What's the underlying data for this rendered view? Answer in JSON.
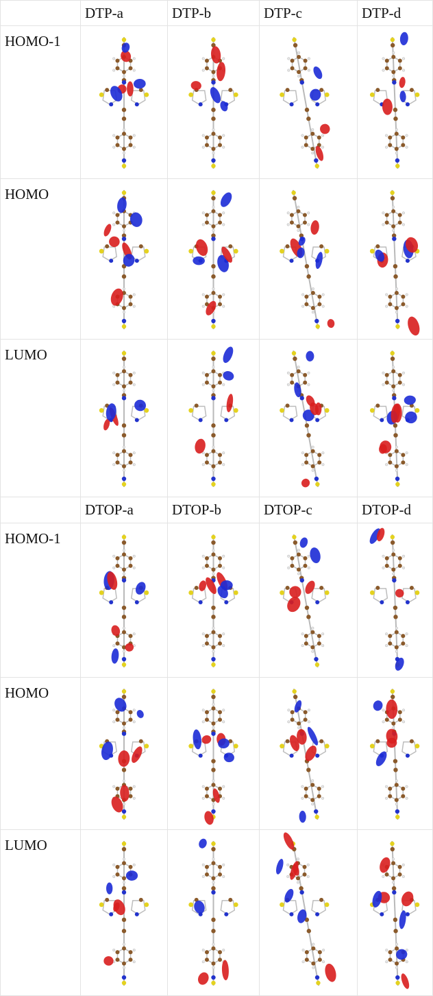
{
  "tables": [
    {
      "columns": [
        "",
        "DTP-a",
        "DTP-b",
        "DTP-c",
        "DTP-d"
      ],
      "rows": [
        {
          "label": "HOMO-1",
          "images": [
            "dtp-a-homo-1",
            "dtp-b-homo-1",
            "dtp-c-homo-1",
            "dtp-d-homo-1"
          ]
        },
        {
          "label": "HOMO",
          "images": [
            "dtp-a-homo",
            "dtp-b-homo",
            "dtp-c-homo",
            "dtp-d-homo"
          ]
        },
        {
          "label": "LUMO",
          "images": [
            "dtp-a-lumo",
            "dtp-b-lumo",
            "dtp-c-lumo",
            "dtp-d-lumo"
          ]
        }
      ]
    },
    {
      "columns": [
        "",
        "DTOP-a",
        "DTOP-b",
        "DTOP-c",
        "DTOP-d"
      ],
      "rows": [
        {
          "label": "HOMO-1",
          "images": [
            "dtop-a-homo-1",
            "dtop-b-homo-1",
            "dtop-c-homo-1",
            "dtop-d-homo-1"
          ]
        },
        {
          "label": "HOMO",
          "images": [
            "dtop-a-homo",
            "dtop-b-homo",
            "dtop-c-homo",
            "dtop-d-homo"
          ]
        },
        {
          "label": "LUMO",
          "images": [
            "dtop-a-lumo",
            "dtop-b-lumo",
            "dtop-c-lumo",
            "dtop-d-lumo"
          ]
        }
      ]
    }
  ],
  "colors": {
    "carbon": "#8a5a2b",
    "hydrogen": "#e6e6e6",
    "sulfur": "#e4d21f",
    "nitrogen": "#2233cc",
    "oxygen": "#cc2222",
    "orbital_positive": "#d81e1e",
    "orbital_negative": "#1c2bd6",
    "grid_line": "#e3e3e3"
  }
}
